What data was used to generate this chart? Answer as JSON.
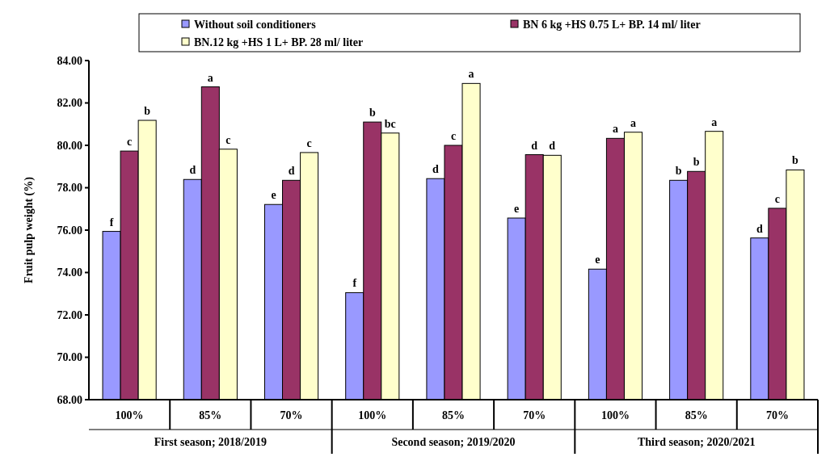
{
  "chart_data": {
    "type": "bar",
    "ylabel": "Fruit pulp weight (%)",
    "categories": [
      "100%",
      "85%",
      "70%",
      "100%",
      "85%",
      "70%",
      "100%",
      "85%",
      "70%"
    ],
    "annotations": [
      "First season; 2018/2019",
      "Second season; 2019/2020",
      "Third season; 2020/2021"
    ],
    "series": [
      {
        "name": "Without soil conditioners",
        "color": "#9999ff",
        "values": [
          75.94,
          78.39,
          77.21,
          73.05,
          78.43,
          76.57,
          74.16,
          78.35,
          75.63
        ],
        "value_labels": [
          "f",
          "d",
          "e",
          "f",
          "d",
          "e",
          "e",
          "b",
          "d"
        ]
      },
      {
        "name": "BN 6 kg +HS 0.75 L+ BP. 14 ml/ liter",
        "color": "#993366",
        "values": [
          79.73,
          82.76,
          78.35,
          81.1,
          80.0,
          79.56,
          80.33,
          78.77,
          77.03
        ],
        "value_labels": [
          "c",
          "a",
          "d",
          "b",
          "c",
          "d",
          "a",
          "b",
          "c"
        ]
      },
      {
        "name": "BN.12 kg +HS 1 L+ BP. 28 ml/ liter",
        "color": "#ffffcc",
        "values": [
          81.18,
          79.82,
          79.66,
          80.58,
          82.92,
          79.53,
          80.62,
          80.66,
          78.84
        ],
        "value_labels": [
          "b",
          "c",
          "c",
          "bc",
          "a",
          "d",
          "a",
          "a",
          "b"
        ]
      }
    ],
    "ylim": [
      68,
      84
    ],
    "yticks": [
      {
        "value": 68,
        "label": "68.00"
      },
      {
        "value": 70,
        "label": "70.00"
      },
      {
        "value": 72,
        "label": "72.00"
      },
      {
        "value": 74,
        "label": "74.00"
      },
      {
        "value": 76,
        "label": "76.00"
      },
      {
        "value": 78,
        "label": "78.00"
      },
      {
        "value": 80,
        "label": "80.00"
      },
      {
        "value": 82,
        "label": "82.00"
      },
      {
        "value": 84,
        "label": "84.00"
      }
    ],
    "grid": false,
    "legend": "top"
  }
}
